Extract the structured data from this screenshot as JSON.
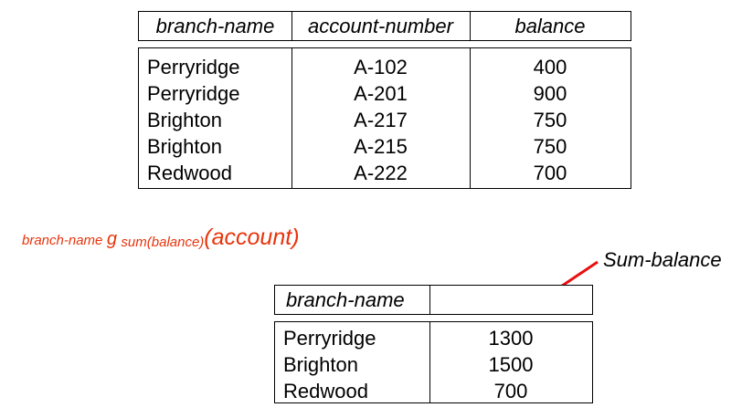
{
  "account_table": {
    "headers": [
      "branch-name",
      "account-number",
      "balance"
    ],
    "rows": [
      [
        "Perryridge",
        "A-102",
        "400"
      ],
      [
        "Perryridge",
        "A-201",
        "900"
      ],
      [
        "Brighton",
        "A-217",
        "750"
      ],
      [
        "Brighton",
        "A-215",
        "750"
      ],
      [
        "Redwood",
        "A-222",
        "700"
      ]
    ]
  },
  "expression": {
    "grouping_attr": "branch-name",
    "operator": "g",
    "aggregate": "sum(balance)",
    "open_paren": "(",
    "relation": "account",
    "close_paren": ")"
  },
  "annotation": {
    "label": "Sum-balance"
  },
  "result_table": {
    "headers": [
      "branch-name",
      ""
    ],
    "rows": [
      [
        "Perryridge",
        "1300"
      ],
      [
        "Brighton",
        "1500"
      ],
      [
        "Redwood",
        "700"
      ]
    ]
  },
  "colors": {
    "expression": "#e8340c",
    "arrow": "#e81010",
    "border": "#000000"
  }
}
